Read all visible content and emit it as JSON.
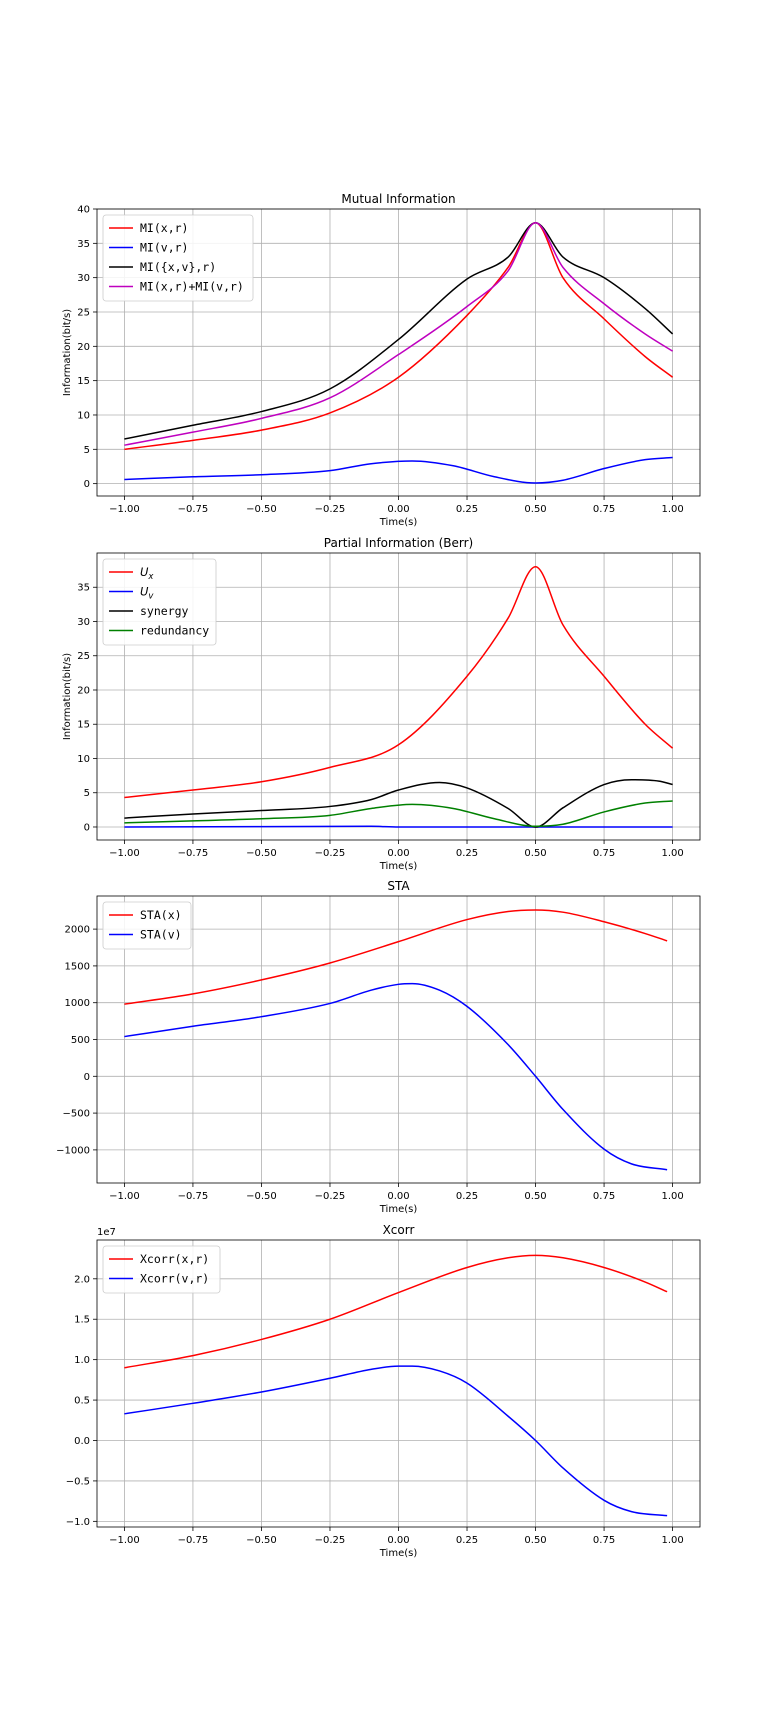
{
  "chart_data": [
    {
      "type": "line",
      "title": "Mutual Information",
      "xlabel": "Time(s)",
      "ylabel": "Information(bit/s)",
      "xlim": [
        -1.1,
        1.1
      ],
      "ylim": [
        -1.8,
        40
      ],
      "xticks": [
        -1.0,
        -0.75,
        -0.5,
        -0.25,
        0.0,
        0.25,
        0.5,
        0.75,
        1.0
      ],
      "xtick_labels": [
        "−1.00",
        "−0.75",
        "−0.50",
        "−0.25",
        "0.00",
        "0.25",
        "0.50",
        "0.75",
        "1.00"
      ],
      "yticks": [
        0,
        5,
        10,
        15,
        20,
        25,
        30,
        35,
        40
      ],
      "ytick_labels": [
        "0",
        "5",
        "10",
        "15",
        "20",
        "25",
        "30",
        "35",
        "40"
      ],
      "exponent_label": "",
      "grid": true,
      "legend": "upper-left",
      "series": [
        {
          "name": "MI(x,r)",
          "color": "#ff0000",
          "x": [
            -1.0,
            -0.75,
            -0.5,
            -0.25,
            0.0,
            0.25,
            0.4,
            0.5,
            0.6,
            0.75,
            0.9,
            1.0
          ],
          "y": [
            5.0,
            6.3,
            7.8,
            10.3,
            15.5,
            24.5,
            31.5,
            38.0,
            30.0,
            24.0,
            18.5,
            15.5
          ]
        },
        {
          "name": "MI(v,r)",
          "color": "#0000ff",
          "x": [
            -1.0,
            -0.75,
            -0.5,
            -0.25,
            -0.1,
            0.05,
            0.2,
            0.35,
            0.5,
            0.6,
            0.75,
            0.9,
            1.0
          ],
          "y": [
            0.6,
            1.0,
            1.3,
            1.9,
            2.9,
            3.3,
            2.6,
            1.0,
            0.1,
            0.5,
            2.2,
            3.5,
            3.8
          ]
        },
        {
          "name": "MI({x,v},r)",
          "color": "#000000",
          "x": [
            -1.0,
            -0.75,
            -0.5,
            -0.25,
            0.0,
            0.25,
            0.4,
            0.5,
            0.6,
            0.75,
            0.9,
            1.0
          ],
          "y": [
            6.5,
            8.5,
            10.5,
            13.8,
            21.0,
            29.8,
            33.0,
            38.0,
            33.0,
            30.0,
            25.5,
            21.8
          ]
        },
        {
          "name": "MI(x,r)+MI(v,r)",
          "color": "#bf00bf",
          "x": [
            -1.0,
            -0.75,
            -0.5,
            -0.25,
            0.0,
            0.25,
            0.4,
            0.5,
            0.6,
            0.75,
            0.9,
            1.0
          ],
          "y": [
            5.6,
            7.5,
            9.5,
            12.5,
            18.8,
            25.8,
            31.0,
            38.0,
            31.5,
            26.2,
            21.8,
            19.3
          ]
        }
      ]
    },
    {
      "type": "line",
      "title": "Partial Information (Berr)",
      "xlabel": "Time(s)",
      "ylabel": "Information(bit/s)",
      "xlim": [
        -1.1,
        1.1
      ],
      "ylim": [
        -1.9,
        40
      ],
      "xticks": [
        -1.0,
        -0.75,
        -0.5,
        -0.25,
        0.0,
        0.25,
        0.5,
        0.75,
        1.0
      ],
      "xtick_labels": [
        "−1.00",
        "−0.75",
        "−0.50",
        "−0.25",
        "0.00",
        "0.25",
        "0.50",
        "0.75",
        "1.00"
      ],
      "yticks": [
        0,
        5,
        10,
        15,
        20,
        25,
        30,
        35
      ],
      "ytick_labels": [
        "0",
        "5",
        "10",
        "15",
        "20",
        "25",
        "30",
        "35"
      ],
      "exponent_label": "",
      "grid": true,
      "legend": "upper-left",
      "series": [
        {
          "name": "U",
          "name_sub": "x",
          "color": "#ff0000",
          "x": [
            -1.0,
            -0.75,
            -0.5,
            -0.25,
            0.0,
            0.25,
            0.4,
            0.5,
            0.6,
            0.75,
            0.9,
            1.0
          ],
          "y": [
            4.3,
            5.4,
            6.6,
            8.7,
            12.0,
            22.0,
            30.5,
            38.0,
            29.5,
            22.0,
            15.0,
            11.5
          ]
        },
        {
          "name": "U",
          "name_sub": "v",
          "color": "#0000ff",
          "x": [
            -1.0,
            -0.5,
            -0.1,
            0.0,
            0.5,
            1.0
          ],
          "y": [
            0.0,
            0.05,
            0.1,
            0.0,
            0.0,
            0.0
          ]
        },
        {
          "name": "synergy",
          "color": "#000000",
          "x": [
            -1.0,
            -0.75,
            -0.5,
            -0.25,
            -0.1,
            0.0,
            0.15,
            0.25,
            0.4,
            0.5,
            0.6,
            0.75,
            0.85,
            0.95,
            1.0
          ],
          "y": [
            1.3,
            1.9,
            2.4,
            3.0,
            4.0,
            5.4,
            6.5,
            5.7,
            2.7,
            0.0,
            2.8,
            6.2,
            6.9,
            6.7,
            6.2
          ]
        },
        {
          "name": "redundancy",
          "color": "#008000",
          "x": [
            -1.0,
            -0.75,
            -0.5,
            -0.25,
            -0.1,
            0.05,
            0.2,
            0.35,
            0.5,
            0.6,
            0.75,
            0.9,
            1.0
          ],
          "y": [
            0.6,
            0.9,
            1.2,
            1.7,
            2.7,
            3.3,
            2.7,
            1.2,
            0.1,
            0.4,
            2.2,
            3.5,
            3.8
          ]
        }
      ]
    },
    {
      "type": "line",
      "title": "STA",
      "xlabel": "Time(s)",
      "ylabel": "",
      "xlim": [
        -1.1,
        1.1
      ],
      "ylim": [
        -1450,
        2450
      ],
      "xticks": [
        -1.0,
        -0.75,
        -0.5,
        -0.25,
        0.0,
        0.25,
        0.5,
        0.75,
        1.0
      ],
      "xtick_labels": [
        "−1.00",
        "−0.75",
        "−0.50",
        "−0.25",
        "0.00",
        "0.25",
        "0.50",
        "0.75",
        "1.00"
      ],
      "yticks": [
        -1000,
        -500,
        0,
        500,
        1000,
        1500,
        2000
      ],
      "ytick_labels": [
        "−1000",
        "−500",
        "0",
        "500",
        "1000",
        "1500",
        "2000"
      ],
      "exponent_label": "",
      "grid": true,
      "legend": "upper-left",
      "series": [
        {
          "name": "STA(x)",
          "color": "#ff0000",
          "x": [
            -1.0,
            -0.75,
            -0.5,
            -0.25,
            0.0,
            0.25,
            0.4,
            0.5,
            0.6,
            0.75,
            0.9,
            0.98
          ],
          "y": [
            980,
            1120,
            1310,
            1540,
            1830,
            2130,
            2240,
            2260,
            2230,
            2100,
            1940,
            1840
          ]
        },
        {
          "name": "STA(v)",
          "color": "#0000ff",
          "x": [
            -1.0,
            -0.75,
            -0.5,
            -0.25,
            -0.1,
            0.0,
            0.05,
            0.15,
            0.25,
            0.4,
            0.5,
            0.6,
            0.75,
            0.85,
            0.98
          ],
          "y": [
            540,
            680,
            810,
            990,
            1170,
            1250,
            1260,
            1170,
            950,
            430,
            0,
            -450,
            -990,
            -1190,
            -1270
          ]
        }
      ]
    },
    {
      "type": "line",
      "title": "Xcorr",
      "xlabel": "Time(s)",
      "ylabel": "",
      "xlim": [
        -1.1,
        1.1
      ],
      "ylim": [
        -1.07,
        2.48
      ],
      "xticks": [
        -1.0,
        -0.75,
        -0.5,
        -0.25,
        0.0,
        0.25,
        0.5,
        0.75,
        1.0
      ],
      "xtick_labels": [
        "−1.00",
        "−0.75",
        "−0.50",
        "−0.25",
        "0.00",
        "0.25",
        "0.50",
        "0.75",
        "1.00"
      ],
      "yticks": [
        -1.0,
        -0.5,
        0.0,
        0.5,
        1.0,
        1.5,
        2.0
      ],
      "ytick_labels": [
        "−1.0",
        "−0.5",
        "0.0",
        "0.5",
        "1.0",
        "1.5",
        "2.0"
      ],
      "exponent_label": "1e7",
      "grid": true,
      "legend": "upper-left",
      "series": [
        {
          "name": "Xcorr(x,r)",
          "color": "#ff0000",
          "x": [
            -1.0,
            -0.75,
            -0.5,
            -0.25,
            0.0,
            0.25,
            0.4,
            0.5,
            0.6,
            0.75,
            0.9,
            0.98
          ],
          "y": [
            0.9,
            1.05,
            1.25,
            1.5,
            1.83,
            2.14,
            2.26,
            2.29,
            2.26,
            2.14,
            1.96,
            1.84
          ]
        },
        {
          "name": "Xcorr(v,r)",
          "color": "#0000ff",
          "x": [
            -1.0,
            -0.75,
            -0.5,
            -0.25,
            -0.1,
            0.0,
            0.05,
            0.15,
            0.25,
            0.4,
            0.5,
            0.6,
            0.75,
            0.85,
            0.98
          ],
          "y": [
            0.33,
            0.46,
            0.6,
            0.77,
            0.88,
            0.92,
            0.92,
            0.86,
            0.71,
            0.3,
            0.0,
            -0.34,
            -0.74,
            -0.88,
            -0.93
          ]
        }
      ]
    }
  ]
}
